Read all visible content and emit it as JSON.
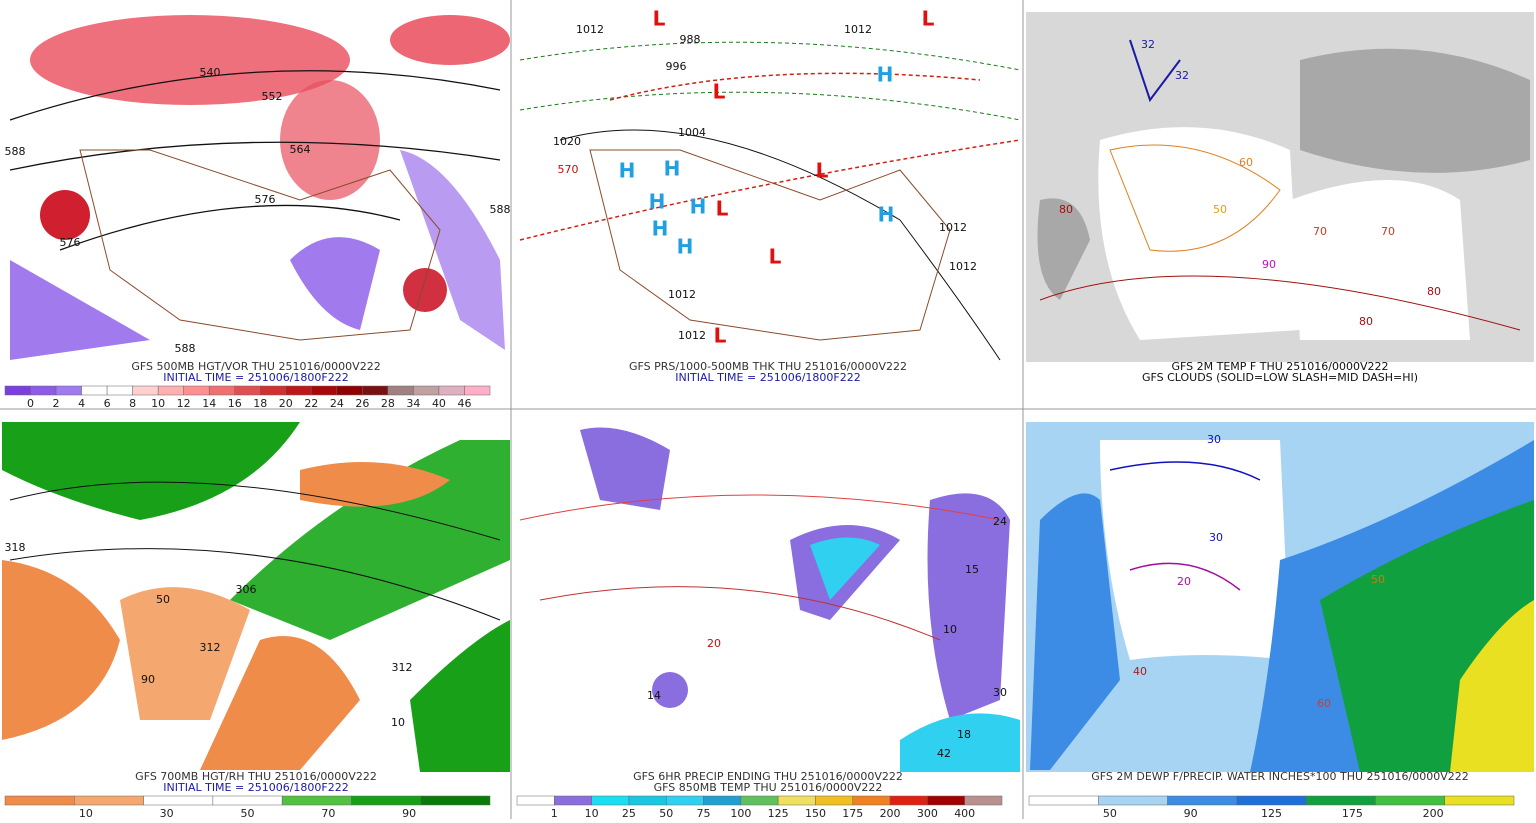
{
  "panels": [
    {
      "captions": [
        {
          "text": "GFS 500MB HGT/VOR THU 251016/0000V222",
          "color": "#333333"
        },
        {
          "text": "INITIAL TIME = 251006/1800F222",
          "color": "#1a1aa6"
        }
      ],
      "colorbar": {
        "ticks": [
          0,
          2,
          4,
          6,
          8,
          10,
          12,
          14,
          16,
          18,
          20,
          22,
          24,
          26,
          28,
          34,
          40,
          46
        ],
        "colors": [
          "#7b3fe0",
          "#8e5ae8",
          "#a07af0",
          "#ffffff",
          "#ffffff",
          "#ffd0d0",
          "#ffb0b0",
          "#ff9090",
          "#f07070",
          "#e05050",
          "#d03030",
          "#c01818",
          "#a80808",
          "#900000",
          "#7a1010",
          "#a08080",
          "#c0a0a0",
          "#e0b0c0",
          "#ffb0c8"
        ]
      },
      "labels": [
        {
          "text": "588",
          "color": "#111111"
        },
        {
          "text": "540",
          "color": "#111111"
        },
        {
          "text": "552",
          "color": "#111111"
        },
        {
          "text": "564",
          "color": "#111111"
        },
        {
          "text": "576",
          "color": "#111111"
        },
        {
          "text": "576",
          "color": "#111111"
        },
        {
          "text": "588",
          "color": "#111111"
        },
        {
          "text": "588",
          "color": "#111111"
        }
      ]
    },
    {
      "captions": [
        {
          "text": "GFS PRS/1000-500MB THK THU 251016/0000V222",
          "color": "#333333"
        },
        {
          "text": "INITIAL TIME = 251006/1800F222",
          "color": "#1a1aa6"
        }
      ],
      "labels": [
        {
          "text": "L",
          "color": "#e01010"
        },
        {
          "text": "L",
          "color": "#e01010"
        },
        {
          "text": "L",
          "color": "#e01010"
        },
        {
          "text": "L",
          "color": "#e01010"
        },
        {
          "text": "L",
          "color": "#e01010"
        },
        {
          "text": "L",
          "color": "#e01010"
        },
        {
          "text": "L",
          "color": "#e01010"
        },
        {
          "text": "H",
          "color": "#20a0e0"
        },
        {
          "text": "H",
          "color": "#20a0e0"
        },
        {
          "text": "H",
          "color": "#20a0e0"
        },
        {
          "text": "H",
          "color": "#20a0e0"
        },
        {
          "text": "H",
          "color": "#20a0e0"
        },
        {
          "text": "H",
          "color": "#20a0e0"
        },
        {
          "text": "H",
          "color": "#20a0e0"
        },
        {
          "text": "H",
          "color": "#20a0e0"
        },
        {
          "text": "1020",
          "color": "#111111"
        },
        {
          "text": "1012",
          "color": "#111111"
        },
        {
          "text": "1012",
          "color": "#111111"
        },
        {
          "text": "1004",
          "color": "#111111"
        },
        {
          "text": "1012",
          "color": "#111111"
        },
        {
          "text": "1012",
          "color": "#111111"
        },
        {
          "text": "1012",
          "color": "#111111"
        },
        {
          "text": "1012",
          "color": "#111111"
        },
        {
          "text": "988",
          "color": "#111111"
        },
        {
          "text": "996",
          "color": "#111111"
        },
        {
          "text": "570",
          "color": "#c01010"
        }
      ]
    },
    {
      "captions": [
        {
          "text": "GFS 2M TEMP F THU 251016/0000V222",
          "color": "#111111"
        },
        {
          "text": "GFS CLOUDS (SOLID=LOW SLASH=MID DASH=HI)",
          "color": "#111111"
        }
      ],
      "labels": [
        {
          "text": "32",
          "color": "#1a1aa6"
        },
        {
          "text": "32",
          "color": "#1a1aa6"
        },
        {
          "text": "50",
          "color": "#e0a010"
        },
        {
          "text": "60",
          "color": "#e08020"
        },
        {
          "text": "70",
          "color": "#c04020"
        },
        {
          "text": "80",
          "color": "#a01010"
        },
        {
          "text": "80",
          "color": "#a01010"
        },
        {
          "text": "90",
          "color": "#c010c0"
        },
        {
          "text": "70",
          "color": "#c04020"
        },
        {
          "text": "80",
          "color": "#a01010"
        }
      ]
    },
    {
      "captions": [
        {
          "text": "GFS 700MB HGT/RH THU 251016/0000V222",
          "color": "#333333"
        },
        {
          "text": "INITIAL TIME = 251006/1800F222",
          "color": "#1a1aa6"
        }
      ],
      "colorbar": {
        "ticks": [
          10,
          30,
          50,
          70,
          90
        ],
        "colors": [
          "#f08c4a",
          "#f4a870",
          "#ffffff",
          "#ffffff",
          "#52c040",
          "#16a016",
          "#0a7a0a"
        ]
      },
      "labels": [
        {
          "text": "318",
          "color": "#111111"
        },
        {
          "text": "306",
          "color": "#111111"
        },
        {
          "text": "312",
          "color": "#111111"
        },
        {
          "text": "312",
          "color": "#111111"
        },
        {
          "text": "10",
          "color": "#111111"
        },
        {
          "text": "50",
          "color": "#111111"
        },
        {
          "text": "90",
          "color": "#111111"
        }
      ]
    },
    {
      "captions": [
        {
          "text": "GFS 6HR PRECIP ENDING THU 251016/0000V222",
          "color": "#333333"
        },
        {
          "text": "GFS 850MB TEMP THU 251016/0000V222",
          "color": "#333333"
        }
      ],
      "colorbar": {
        "ticks": [
          1,
          10,
          25,
          50,
          75,
          100,
          125,
          150,
          175,
          200,
          300,
          400
        ],
        "colors": [
          "#ffffff",
          "#8a6ee0",
          "#18e0f0",
          "#18c8e0",
          "#30d0f0",
          "#20a0d0",
          "#60c060",
          "#f0e060",
          "#f0c020",
          "#f08020",
          "#e02010",
          "#a00000",
          "#b89090"
        ]
      },
      "labels": [
        {
          "text": "24",
          "color": "#111111"
        },
        {
          "text": "15",
          "color": "#111111"
        },
        {
          "text": "10",
          "color": "#111111"
        },
        {
          "text": "30",
          "color": "#111111"
        },
        {
          "text": "18",
          "color": "#111111"
        },
        {
          "text": "42",
          "color": "#111111"
        },
        {
          "text": "14",
          "color": "#111111"
        },
        {
          "text": "20",
          "color": "#c01010"
        }
      ]
    },
    {
      "captions": [
        {
          "text": "GFS 2M DEWP F/PRECIP. WATER INCHES*100 THU 251016/0000V222",
          "color": "#333333"
        }
      ],
      "colorbar": {
        "ticks": [
          50,
          90,
          125,
          175,
          200
        ],
        "colors": [
          "#ffffff",
          "#a8d4f4",
          "#3c8ce6",
          "#1f6fd8",
          "#10a040",
          "#40c040",
          "#e8e020"
        ]
      },
      "labels": [
        {
          "text": "30",
          "color": "#1010c0"
        },
        {
          "text": "30",
          "color": "#1010c0"
        },
        {
          "text": "20",
          "color": "#a010a0"
        },
        {
          "text": "50",
          "color": "#c08010"
        },
        {
          "text": "40",
          "color": "#a02020"
        },
        {
          "text": "60",
          "color": "#c04040"
        }
      ]
    }
  ]
}
